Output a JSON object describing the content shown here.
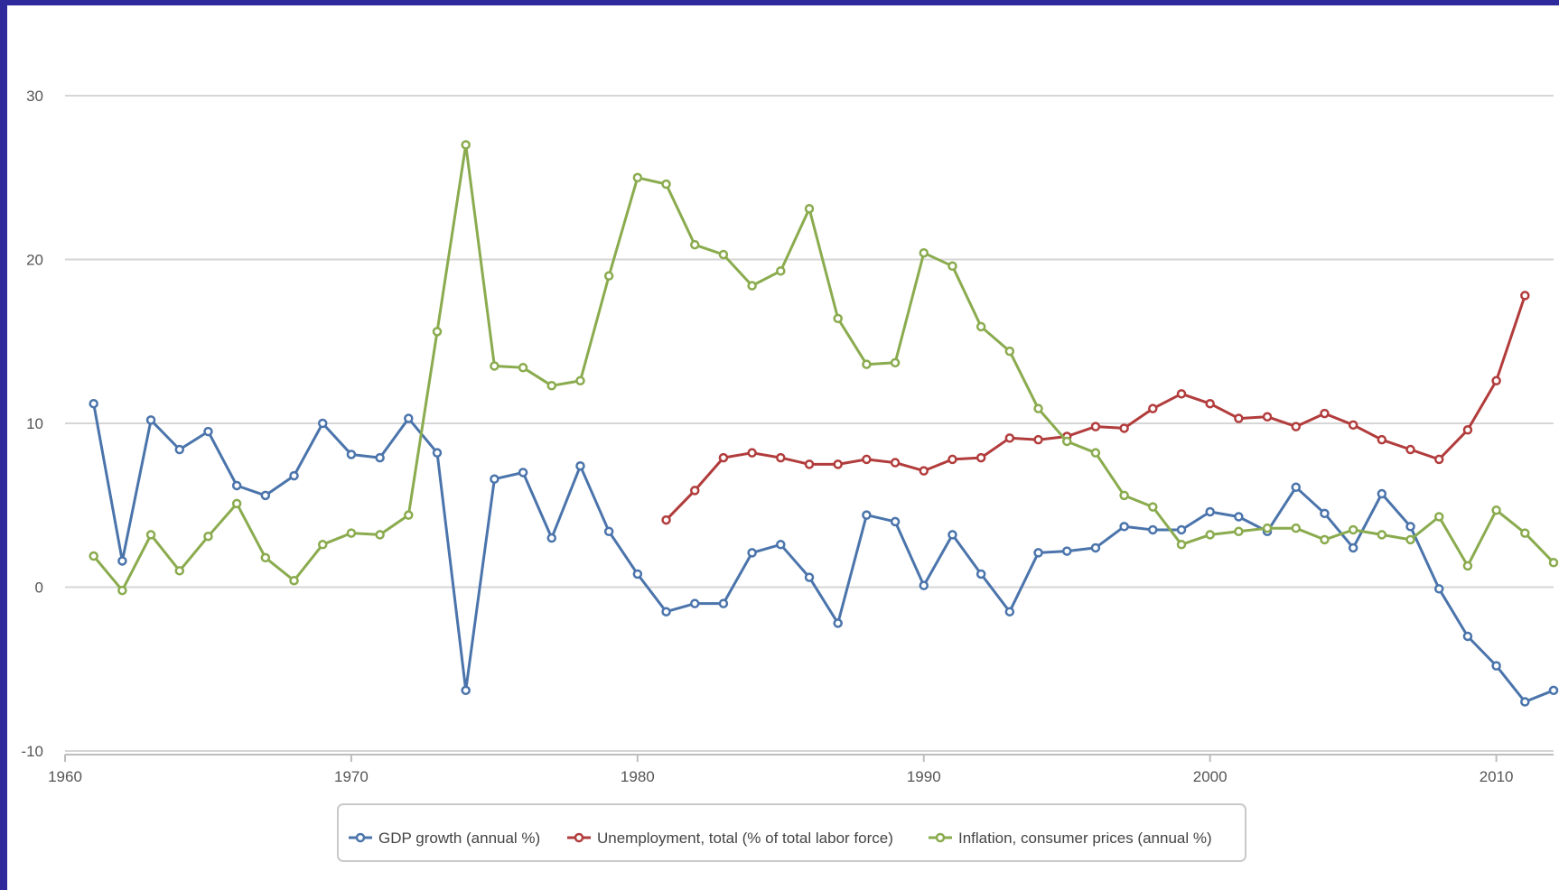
{
  "chart_data": {
    "type": "line",
    "title": "",
    "xlabel": "",
    "ylabel": "",
    "xlim": [
      1960,
      2012
    ],
    "ylim": [
      -10,
      30
    ],
    "x_ticks": [
      "1960",
      "1970",
      "1980",
      "1990",
      "2000",
      "2010"
    ],
    "y_ticks": [
      "30",
      "20",
      "10",
      "0",
      "-10"
    ],
    "grid": "horizontal",
    "legend_position": "bottom",
    "series": [
      {
        "name": "GDP growth (annual %)",
        "color": "#4a74ab",
        "points": [
          [
            1961,
            11.2
          ],
          [
            1962,
            1.6
          ],
          [
            1963,
            10.2
          ],
          [
            1964,
            8.4
          ],
          [
            1965,
            9.5
          ],
          [
            1966,
            6.2
          ],
          [
            1967,
            5.6
          ],
          [
            1968,
            6.8
          ],
          [
            1969,
            10.0
          ],
          [
            1970,
            8.1
          ],
          [
            1971,
            7.9
          ],
          [
            1972,
            10.3
          ],
          [
            1973,
            8.2
          ],
          [
            1974,
            -6.3
          ],
          [
            1975,
            6.6
          ],
          [
            1976,
            7.0
          ],
          [
            1977,
            3.0
          ],
          [
            1978,
            7.4
          ],
          [
            1979,
            3.4
          ],
          [
            1980,
            0.8
          ],
          [
            1981,
            -1.5
          ],
          [
            1982,
            -1.0
          ],
          [
            1983,
            -1.0
          ],
          [
            1984,
            2.1
          ],
          [
            1985,
            2.6
          ],
          [
            1986,
            0.6
          ],
          [
            1987,
            -2.2
          ],
          [
            1988,
            4.4
          ],
          [
            1989,
            4.0
          ],
          [
            1990,
            0.1
          ],
          [
            1991,
            3.2
          ],
          [
            1992,
            0.8
          ],
          [
            1993,
            -1.5
          ],
          [
            1994,
            2.1
          ],
          [
            1995,
            2.2
          ],
          [
            1996,
            2.4
          ],
          [
            1997,
            3.7
          ],
          [
            1998,
            3.5
          ],
          [
            1999,
            3.5
          ],
          [
            2000,
            4.6
          ],
          [
            2001,
            4.3
          ],
          [
            2002,
            3.4
          ],
          [
            2003,
            6.1
          ],
          [
            2004,
            4.5
          ],
          [
            2005,
            2.4
          ],
          [
            2006,
            5.7
          ],
          [
            2007,
            3.7
          ],
          [
            2008,
            -0.1
          ],
          [
            2009,
            -3.0
          ],
          [
            2010,
            -4.8
          ],
          [
            2011,
            -7.0
          ],
          [
            2012,
            -6.3
          ]
        ]
      },
      {
        "name": "Unemployment, total (% of total labor force)",
        "color": "#b23c3c",
        "points": [
          [
            1981,
            4.1
          ],
          [
            1982,
            5.9
          ],
          [
            1983,
            7.9
          ],
          [
            1984,
            8.2
          ],
          [
            1985,
            7.9
          ],
          [
            1986,
            7.5
          ],
          [
            1987,
            7.5
          ],
          [
            1988,
            7.8
          ],
          [
            1989,
            7.6
          ],
          [
            1990,
            7.1
          ],
          [
            1991,
            7.8
          ],
          [
            1992,
            7.9
          ],
          [
            1993,
            9.1
          ],
          [
            1994,
            9.0
          ],
          [
            1995,
            9.2
          ],
          [
            1996,
            9.8
          ],
          [
            1997,
            9.7
          ],
          [
            1998,
            10.9
          ],
          [
            1999,
            11.8
          ],
          [
            2000,
            11.2
          ],
          [
            2001,
            10.3
          ],
          [
            2002,
            10.4
          ],
          [
            2003,
            9.8
          ],
          [
            2004,
            10.6
          ],
          [
            2005,
            9.9
          ],
          [
            2006,
            9.0
          ],
          [
            2007,
            8.4
          ],
          [
            2008,
            7.8
          ],
          [
            2009,
            9.6
          ],
          [
            2010,
            12.6
          ],
          [
            2011,
            17.8
          ]
        ]
      },
      {
        "name": "Inflation, consumer prices (annual %)",
        "color": "#8aab4e",
        "points": [
          [
            1961,
            1.9
          ],
          [
            1962,
            -0.2
          ],
          [
            1963,
            3.2
          ],
          [
            1964,
            1.0
          ],
          [
            1965,
            3.1
          ],
          [
            1966,
            5.1
          ],
          [
            1967,
            1.8
          ],
          [
            1968,
            0.4
          ],
          [
            1969,
            2.6
          ],
          [
            1970,
            3.3
          ],
          [
            1971,
            3.2
          ],
          [
            1972,
            4.4
          ],
          [
            1973,
            15.6
          ],
          [
            1974,
            27.0
          ],
          [
            1975,
            13.5
          ],
          [
            1976,
            13.4
          ],
          [
            1977,
            12.3
          ],
          [
            1978,
            12.6
          ],
          [
            1979,
            19.0
          ],
          [
            1980,
            25.0
          ],
          [
            1981,
            24.6
          ],
          [
            1982,
            20.9
          ],
          [
            1983,
            20.3
          ],
          [
            1984,
            18.4
          ],
          [
            1985,
            19.3
          ],
          [
            1986,
            23.1
          ],
          [
            1987,
            16.4
          ],
          [
            1988,
            13.6
          ],
          [
            1989,
            13.7
          ],
          [
            1990,
            20.4
          ],
          [
            1991,
            19.6
          ],
          [
            1992,
            15.9
          ],
          [
            1993,
            14.4
          ],
          [
            1994,
            10.9
          ],
          [
            1995,
            8.9
          ],
          [
            1996,
            8.2
          ],
          [
            1997,
            5.6
          ],
          [
            1998,
            4.9
          ],
          [
            1999,
            2.6
          ],
          [
            2000,
            3.2
          ],
          [
            2001,
            3.4
          ],
          [
            2002,
            3.6
          ],
          [
            2003,
            3.6
          ],
          [
            2004,
            2.9
          ],
          [
            2005,
            3.5
          ],
          [
            2006,
            3.2
          ],
          [
            2007,
            2.9
          ],
          [
            2008,
            4.3
          ],
          [
            2009,
            1.3
          ],
          [
            2010,
            4.7
          ],
          [
            2011,
            3.3
          ],
          [
            2012,
            1.5
          ]
        ]
      }
    ]
  }
}
